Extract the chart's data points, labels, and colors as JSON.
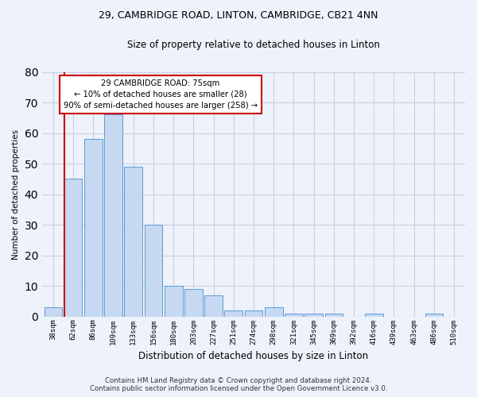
{
  "title1": "29, CAMBRIDGE ROAD, LINTON, CAMBRIDGE, CB21 4NN",
  "title2": "Size of property relative to detached houses in Linton",
  "xlabel": "Distribution of detached houses by size in Linton",
  "ylabel": "Number of detached properties",
  "categories": [
    "38sqm",
    "62sqm",
    "86sqm",
    "109sqm",
    "133sqm",
    "156sqm",
    "180sqm",
    "203sqm",
    "227sqm",
    "251sqm",
    "274sqm",
    "298sqm",
    "321sqm",
    "345sqm",
    "369sqm",
    "392sqm",
    "416sqm",
    "439sqm",
    "463sqm",
    "486sqm",
    "510sqm"
  ],
  "values": [
    3,
    45,
    58,
    66,
    49,
    30,
    10,
    9,
    7,
    2,
    2,
    3,
    1,
    1,
    1,
    0,
    1,
    0,
    0,
    1,
    0
  ],
  "bar_color": "#c7d9f0",
  "bar_edge_color": "#5b9bd5",
  "vline_color": "#cc0000",
  "ylim": [
    0,
    80
  ],
  "yticks": [
    0,
    10,
    20,
    30,
    40,
    50,
    60,
    70,
    80
  ],
  "annotation_text": "29 CAMBRIDGE ROAD: 75sqm\n← 10% of detached houses are smaller (28)\n90% of semi-detached houses are larger (258) →",
  "annotation_box_color": "#cc0000",
  "footer1": "Contains HM Land Registry data © Crown copyright and database right 2024.",
  "footer2": "Contains public sector information licensed under the Open Government Licence v3.0.",
  "background_color": "#eef2fb",
  "grid_color": "#c8d0e0"
}
